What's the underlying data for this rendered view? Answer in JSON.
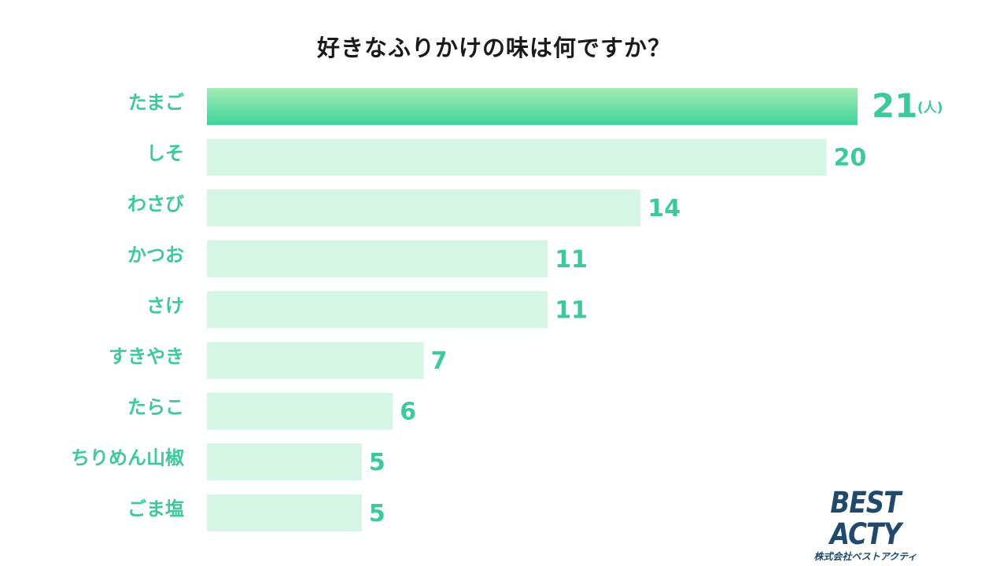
{
  "chart_data": {
    "type": "bar",
    "orientation": "horizontal",
    "title": "好きなふりかけの味は何ですか？",
    "unit": "(人)",
    "categories": [
      "たまご",
      "しそ",
      "わさび",
      "かつお",
      "さけ",
      "すきやき",
      "たらこ",
      "ちりめん山椒",
      "ごま塩"
    ],
    "values": [
      21,
      20,
      14,
      11,
      11,
      7,
      6,
      5,
      5
    ],
    "xlim": [
      0,
      21
    ],
    "grid": false,
    "legend": "none",
    "colors": {
      "highlight_top": "#a3ebb6",
      "highlight_bottom": "#3dd49b",
      "bar": "#d5f5e5",
      "label": "#3dc99b"
    }
  },
  "logo": {
    "main": "BEST ACTY",
    "sub": "株式会社ベストアクティ"
  }
}
